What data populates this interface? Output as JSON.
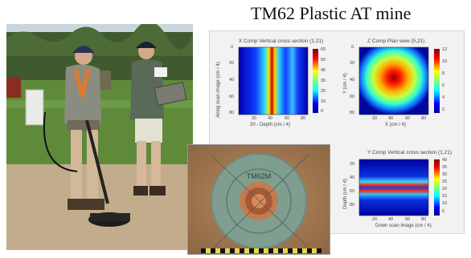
{
  "title": "TM62 Plastic AT mine",
  "plots": [
    {
      "title": "X Comp Vertical cross section (1,21)",
      "ylabel": "Along scan image (cm / 4)",
      "xlabel": "20 - Depth (cm / 4)",
      "y_ticks": [
        "0",
        "20",
        "40",
        "60",
        "80"
      ],
      "x_ticks": [
        "20",
        "40",
        "60",
        "80"
      ],
      "colorbar_ticks": [
        "60",
        "50",
        "40",
        "30",
        "20",
        "10",
        "0"
      ]
    },
    {
      "title": "Z Comp Plan view (5,21)",
      "ylabel": "Y (cm / 4)",
      "xlabel": "X (cm / 4)",
      "y_ticks": [
        "0",
        "20",
        "40",
        "60",
        "80"
      ],
      "x_ticks": [
        "20",
        "40",
        "60",
        "80"
      ],
      "colorbar_ticks": [
        "12",
        "10",
        "8",
        "6",
        "4",
        "2"
      ]
    },
    {
      "title": "Y Comp Vertical cross section (1,21)",
      "ylabel": "Depth (cm / 4)",
      "xlabel": "Down scan image (cm / 4)",
      "y_ticks": [
        "20",
        "40",
        "60",
        "80"
      ],
      "x_ticks": [
        "20",
        "40",
        "60",
        "80"
      ],
      "colorbar_ticks": [
        "40",
        "35",
        "30",
        "25",
        "20",
        "15",
        "10",
        "5"
      ]
    }
  ],
  "mine_label_text": "TM62M"
}
